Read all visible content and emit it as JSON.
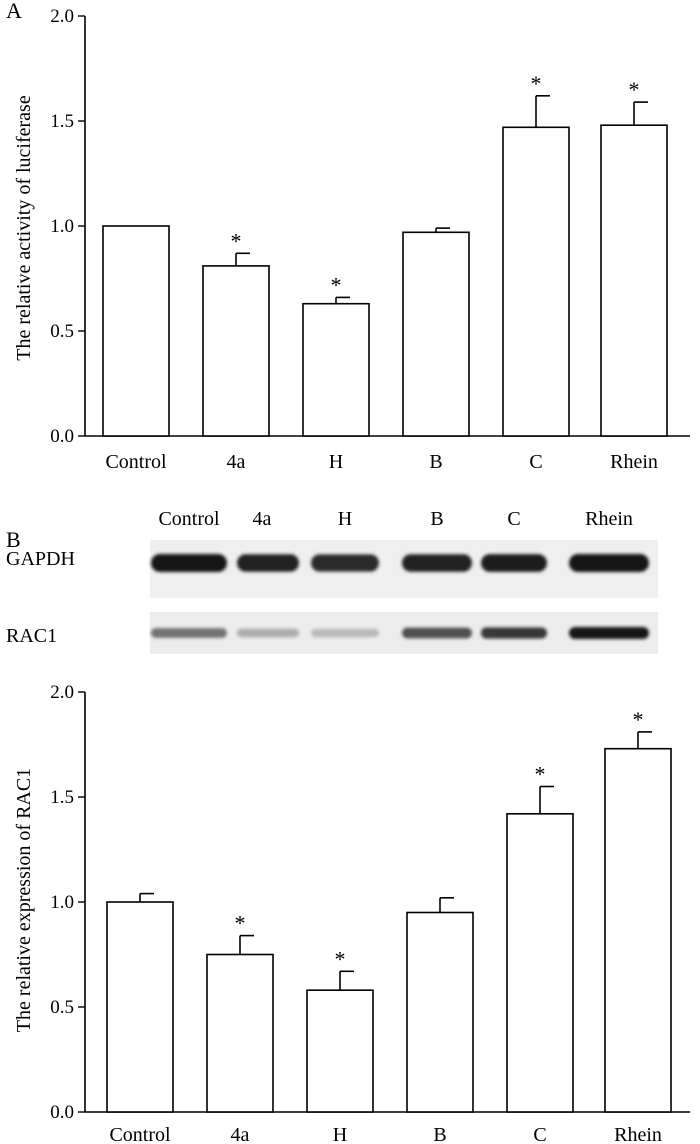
{
  "panel_a": {
    "letter": "A"
  },
  "panel_b": {
    "letter": "B",
    "blot": {
      "lane_labels": [
        "Control",
        "4a",
        "H",
        "B",
        "C",
        "Rhein"
      ],
      "rows": [
        {
          "label": "GAPDH",
          "intensity": [
            1.0,
            0.95,
            0.9,
            0.95,
            0.97,
            1.0
          ]
        },
        {
          "label": "RAC1",
          "intensity": [
            0.6,
            0.35,
            0.3,
            0.75,
            0.85,
            1.0
          ]
        }
      ]
    }
  },
  "chart_data": [
    {
      "type": "bar",
      "title": "",
      "xlabel": "",
      "ylabel": "The relative activity of luciferase",
      "categories": [
        "Control",
        "4a",
        "H",
        "B",
        "C",
        "Rhein"
      ],
      "values": [
        1.0,
        0.81,
        0.63,
        0.97,
        1.47,
        1.48
      ],
      "errors": [
        0.0,
        0.06,
        0.03,
        0.02,
        0.15,
        0.11
      ],
      "significant": [
        false,
        true,
        true,
        false,
        true,
        true
      ],
      "significance_mark": "*",
      "ylim": [
        0,
        2.0
      ],
      "yticks": [
        "0.0",
        "0.5",
        "1.0",
        "1.5",
        "2.0"
      ],
      "grid": false
    },
    {
      "type": "bar",
      "title": "",
      "xlabel": "",
      "ylabel": "The relative expression of RAC1",
      "categories": [
        "Control",
        "4a",
        "H",
        "B",
        "C",
        "Rhein"
      ],
      "values": [
        1.0,
        0.75,
        0.58,
        0.95,
        1.42,
        1.73
      ],
      "errors": [
        0.04,
        0.09,
        0.09,
        0.07,
        0.13,
        0.08
      ],
      "significant": [
        false,
        true,
        true,
        false,
        true,
        true
      ],
      "significance_mark": "*",
      "ylim": [
        0,
        2.0
      ],
      "yticks": [
        "0.0",
        "0.5",
        "1.0",
        "1.5",
        "2.0"
      ],
      "grid": false
    }
  ]
}
